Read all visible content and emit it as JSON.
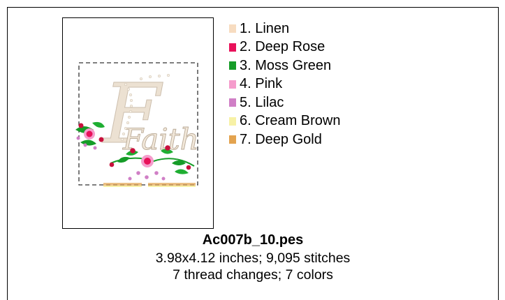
{
  "design": {
    "filename": "Ac007b_10.pes",
    "size_line": "3.98x4.12 inches; 9,095 stitches",
    "changes_line": "7 thread changes; 7 colors",
    "preview_lettering": "Faith"
  },
  "threads": [
    {
      "label": "1.  Linen",
      "color": "#f7dcc0"
    },
    {
      "label": "2.  Deep Rose",
      "color": "#e8115a"
    },
    {
      "label": "3.  Moss Green",
      "color": "#169c28"
    },
    {
      "label": "4.  Pink",
      "color": "#f59ccc"
    },
    {
      "label": "5.  Lilac",
      "color": "#d07fc6"
    },
    {
      "label": "6.  Cream Brown",
      "color": "#f7f1a6"
    },
    {
      "label": "7.  Deep Gold",
      "color": "#e3a34f"
    }
  ]
}
